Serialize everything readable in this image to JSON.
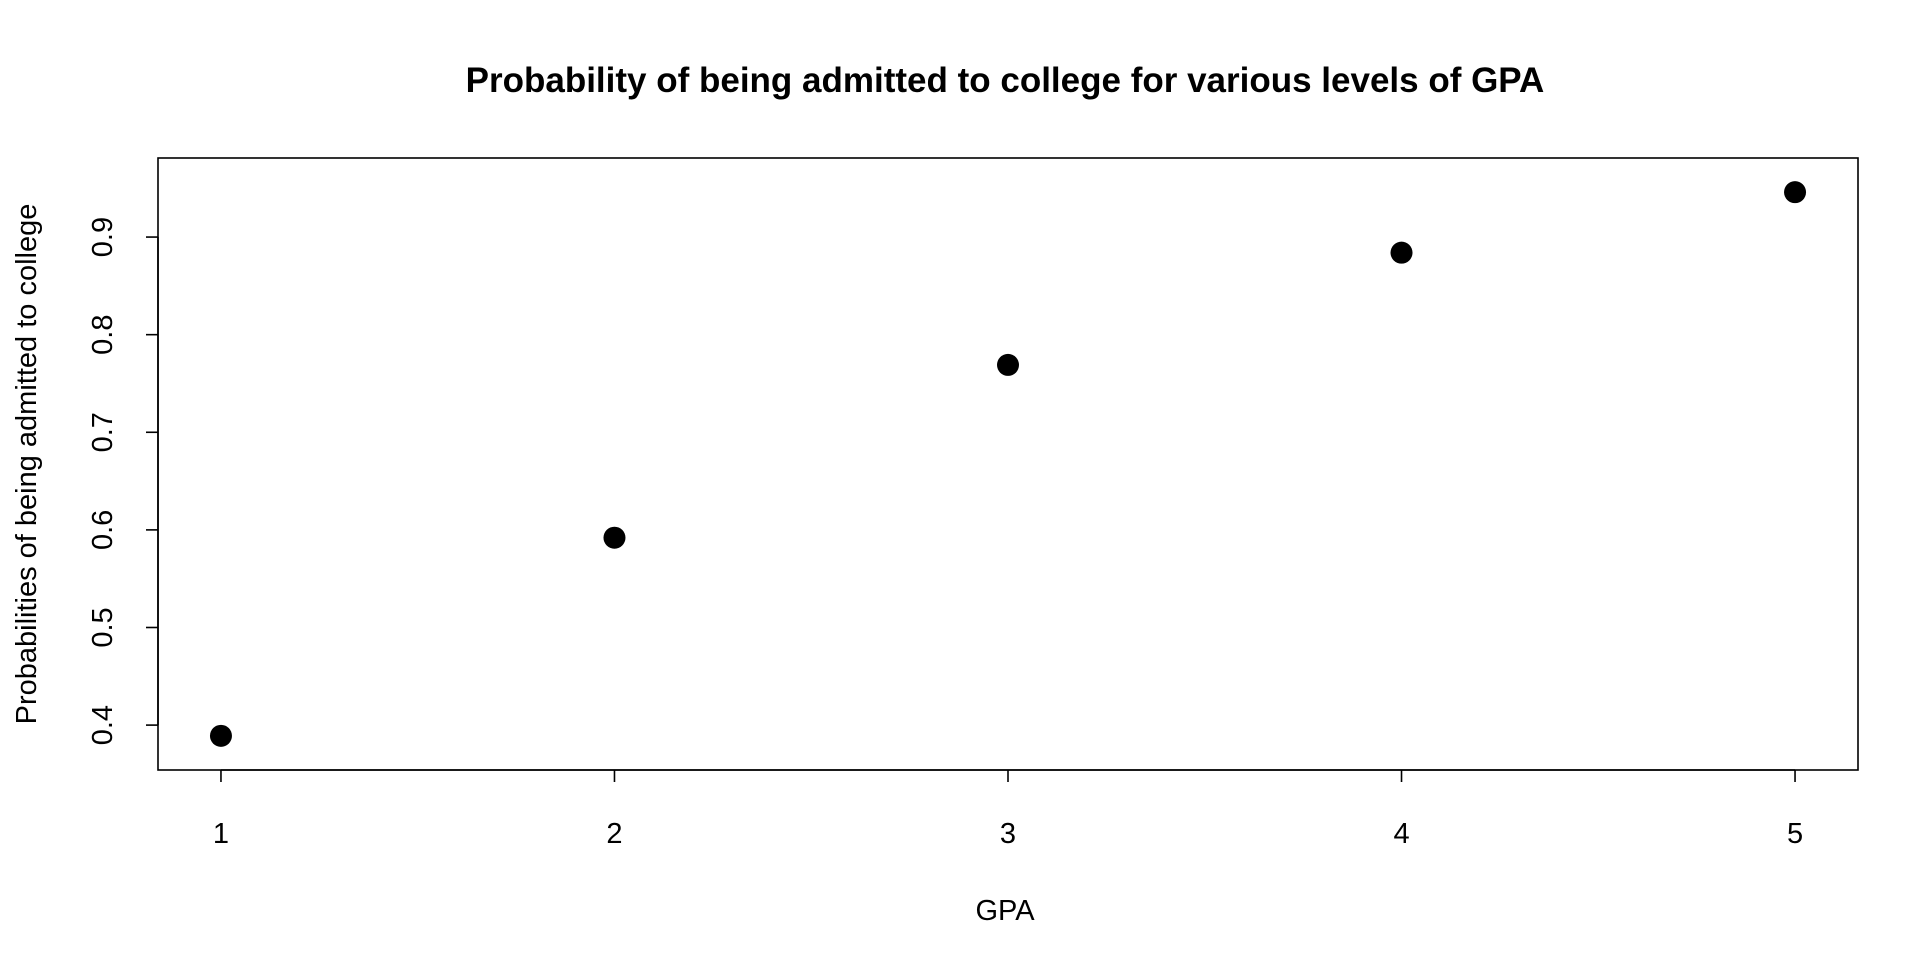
{
  "chart_data": {
    "type": "scatter",
    "title": "Probability of being admitted to college for various levels of GPA",
    "xlabel": "GPA",
    "ylabel": "Probabilities of being admitted to college",
    "x": [
      1,
      2,
      3,
      4,
      5
    ],
    "y": [
      0.389,
      0.592,
      0.769,
      0.884,
      0.946
    ],
    "xlim": [
      0.84,
      5.16
    ],
    "ylim": [
      0.354,
      0.981
    ],
    "xticks": [
      1,
      2,
      3,
      4,
      5
    ],
    "xtick_labels": [
      "1",
      "2",
      "3",
      "4",
      "5"
    ],
    "yticks": [
      0.4,
      0.5,
      0.6,
      0.7,
      0.8,
      0.9
    ],
    "ytick_labels": [
      "0.4",
      "0.5",
      "0.6",
      "0.7",
      "0.8",
      "0.9"
    ],
    "grid": false,
    "legend": "none",
    "marker": "filled-circle",
    "colors": {
      "points": "#000000",
      "axes": "#000000",
      "background": "#ffffff"
    }
  }
}
